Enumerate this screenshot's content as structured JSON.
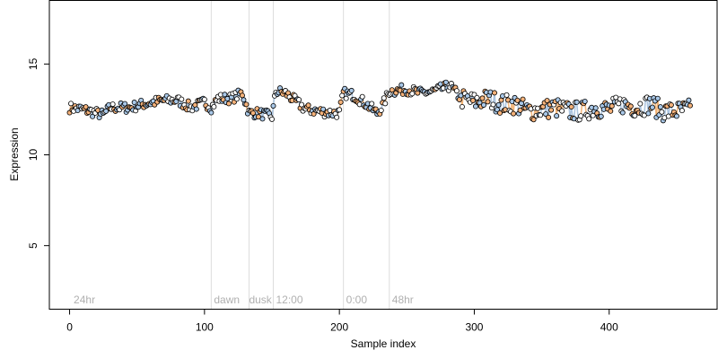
{
  "chart_data": {
    "type": "scatter",
    "xlabel": "Sample index",
    "ylabel": "Expression",
    "xlim": [
      -15,
      480
    ],
    "ylim": [
      1.5,
      18.5
    ],
    "x_ticks": [
      0,
      100,
      200,
      300,
      400
    ],
    "y_ticks": [
      5,
      10,
      15
    ],
    "grid": false,
    "colors": {
      "point_stroke": "#000000",
      "point_fill_orange": "#f5b27a",
      "point_fill_blue": "#a9c8e8",
      "line_orange": "#f0a860",
      "line_blue": "#9ab8d8",
      "vline": "#dddddd",
      "annotation": "#b0b0b0"
    },
    "vlines": [
      105,
      133,
      151,
      203,
      237
    ],
    "annotations": [
      {
        "x": 3,
        "label": "24hr"
      },
      {
        "x": 107,
        "label": "dawn"
      },
      {
        "x": 133,
        "label": "dusk"
      },
      {
        "x": 153,
        "label": "12:00"
      },
      {
        "x": 205,
        "label": "0:00"
      },
      {
        "x": 239,
        "label": "48hr"
      }
    ],
    "anchors": [
      [
        0,
        12.6
      ],
      [
        10,
        12.5
      ],
      [
        20,
        12.3
      ],
      [
        25,
        12.2
      ],
      [
        30,
        12.6
      ],
      [
        45,
        12.6
      ],
      [
        55,
        12.8
      ],
      [
        70,
        13.0
      ],
      [
        80,
        13.0
      ],
      [
        90,
        12.6
      ],
      [
        100,
        12.9
      ],
      [
        105,
        12.6
      ],
      [
        110,
        13.1
      ],
      [
        120,
        13.1
      ],
      [
        128,
        13.4
      ],
      [
        133,
        12.3
      ],
      [
        140,
        12.3
      ],
      [
        150,
        12.1
      ],
      [
        153,
        13.5
      ],
      [
        160,
        13.4
      ],
      [
        170,
        12.8
      ],
      [
        175,
        12.5
      ],
      [
        185,
        12.4
      ],
      [
        195,
        12.3
      ],
      [
        200,
        12.3
      ],
      [
        203,
        13.4
      ],
      [
        210,
        13.3
      ],
      [
        218,
        12.9
      ],
      [
        228,
        12.3
      ],
      [
        232,
        12.7
      ],
      [
        237,
        13.5
      ],
      [
        250,
        13.6
      ],
      [
        260,
        13.4
      ],
      [
        270,
        13.5
      ],
      [
        282,
        13.8
      ],
      [
        290,
        13.1
      ],
      [
        300,
        12.9
      ],
      [
        310,
        13.1
      ],
      [
        320,
        12.8
      ],
      [
        330,
        12.8
      ],
      [
        340,
        12.4
      ],
      [
        350,
        12.5
      ],
      [
        360,
        12.6
      ],
      [
        370,
        12.4
      ],
      [
        380,
        12.4
      ],
      [
        390,
        12.6
      ],
      [
        400,
        12.5
      ],
      [
        410,
        12.8
      ],
      [
        420,
        12.6
      ],
      [
        430,
        12.8
      ],
      [
        440,
        12.4
      ],
      [
        450,
        12.4
      ],
      [
        460,
        12.5
      ]
    ],
    "n_points": 461
  }
}
